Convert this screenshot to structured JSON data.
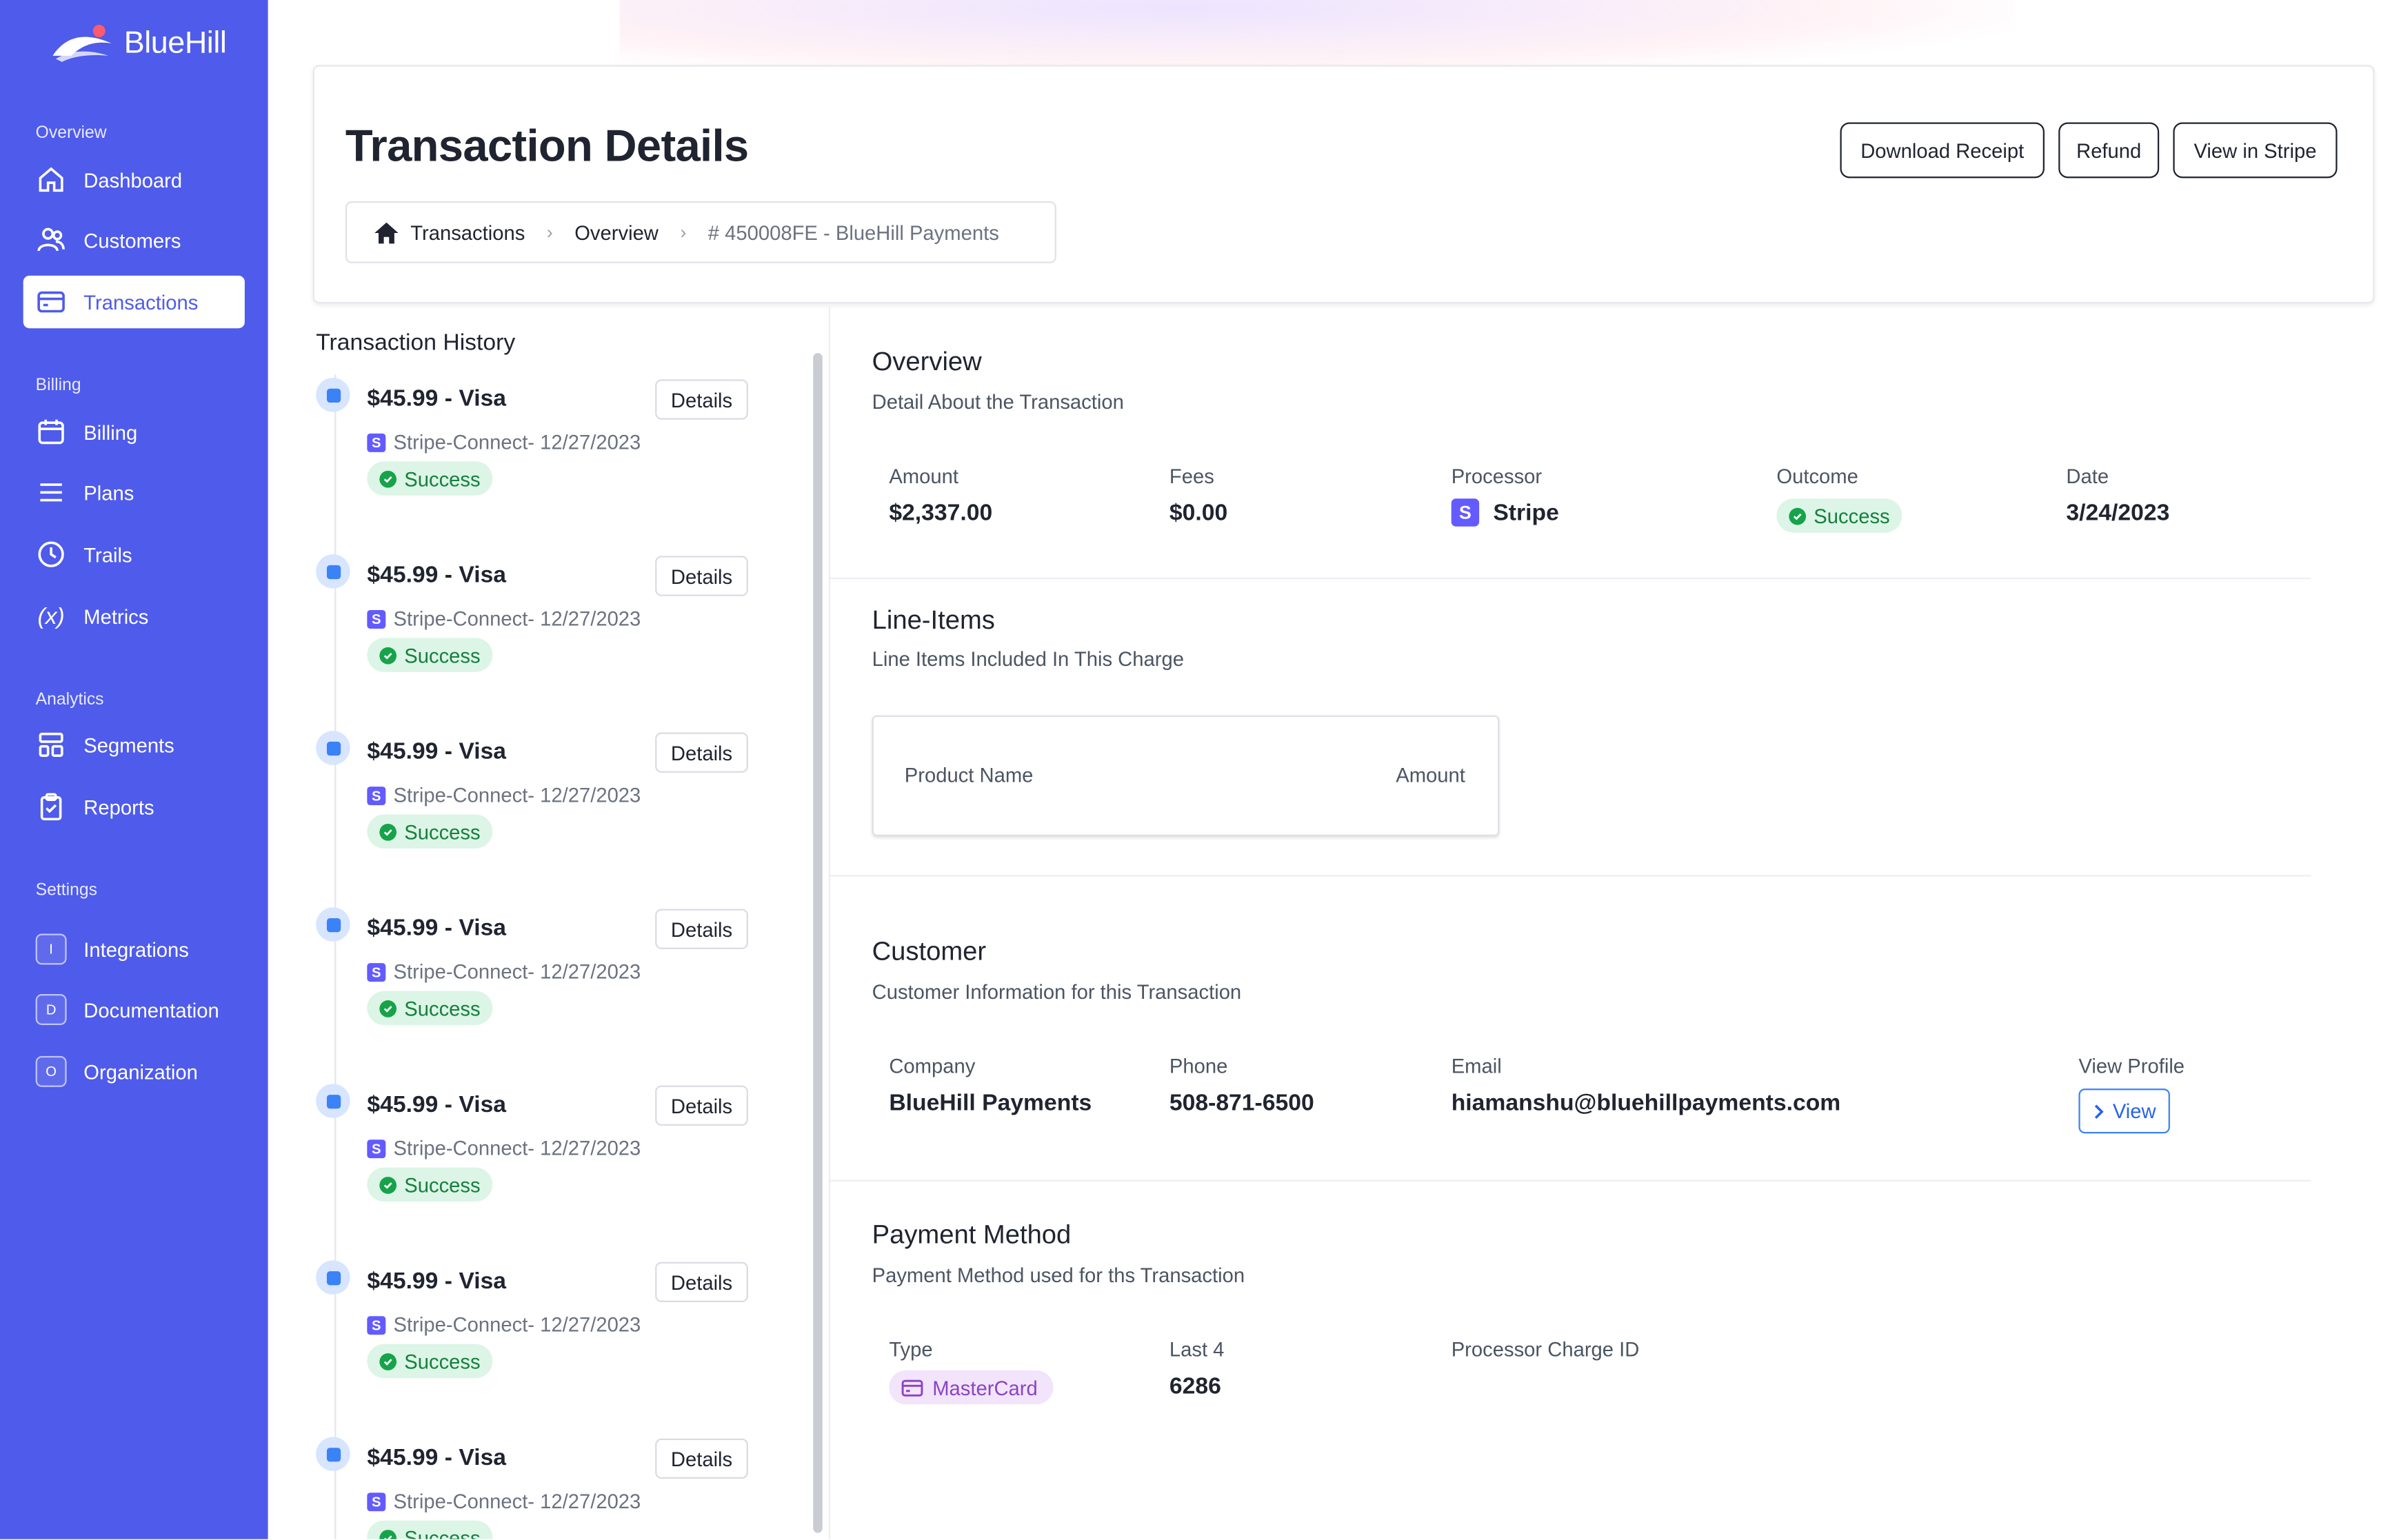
{
  "brand": {
    "name": "BlueHill"
  },
  "sidebar": {
    "sections": {
      "overview": "Overview",
      "billing": "Billing",
      "analytics": "Analytics",
      "settings": "Settings"
    },
    "items": {
      "dashboard": "Dashboard",
      "customers": "Customers",
      "transactions": "Transactions",
      "billing": "Billing",
      "plans": "Plans",
      "trails": "Trails",
      "metrics": "Metrics",
      "segments": "Segments",
      "reports": "Reports",
      "integrations": "Integrations",
      "documentation": "Documentation",
      "organization": "Organization"
    },
    "badges": {
      "integrations": "I",
      "documentation": "D",
      "organization": "O"
    },
    "active": "transactions"
  },
  "header": {
    "title": "Transaction Details",
    "breadcrumb": [
      "Transactions",
      "Overview",
      "# 450008FE - BlueHill Payments"
    ],
    "buttons": {
      "download": "Download Receipt",
      "refund": "Refund",
      "view_stripe": "View in Stripe"
    }
  },
  "history": {
    "title": "Transaction History",
    "details_label": "Details",
    "items": [
      {
        "amount": "$45.99 - Visa",
        "source": "Stripe-Connect- 12/27/2023",
        "status": "Success"
      },
      {
        "amount": "$45.99 - Visa",
        "source": "Stripe-Connect- 12/27/2023",
        "status": "Success"
      },
      {
        "amount": "$45.99 - Visa",
        "source": "Stripe-Connect- 12/27/2023",
        "status": "Success"
      },
      {
        "amount": "$45.99 - Visa",
        "source": "Stripe-Connect- 12/27/2023",
        "status": "Success"
      },
      {
        "amount": "$45.99 - Visa",
        "source": "Stripe-Connect- 12/27/2023",
        "status": "Success"
      },
      {
        "amount": "$45.99 - Visa",
        "source": "Stripe-Connect- 12/27/2023",
        "status": "Success"
      },
      {
        "amount": "$45.99 - Visa",
        "source": "Stripe-Connect- 12/27/2023",
        "status": "Success"
      }
    ]
  },
  "overview": {
    "title": "Overview",
    "subtitle": "Detail About the Transaction",
    "amount_label": "Amount",
    "amount": "$2,337.00",
    "fees_label": "Fees",
    "fees": "$0.00",
    "processor_label": "Processor",
    "processor": "Stripe",
    "outcome_label": "Outcome",
    "outcome": "Success",
    "date_label": "Date",
    "date": "3/24/2023"
  },
  "line_items": {
    "title": "Line-Items",
    "subtitle": "Line Items Included In This Charge",
    "col_product": "Product Name",
    "col_amount": "Amount"
  },
  "customer": {
    "title": "Customer",
    "subtitle": "Customer Information for this Transaction",
    "company_label": "Company",
    "company": "BlueHill Payments",
    "phone_label": "Phone",
    "phone": "508-871-6500",
    "email_label": "Email",
    "email": "hiamanshu@bluehillpayments.com",
    "profile_label": "View Profile",
    "view_button": "View"
  },
  "payment": {
    "title": "Payment Method",
    "subtitle": "Payment Method used for ths Transaction",
    "type_label": "Type",
    "type": "MasterCard",
    "last4_label": "Last 4",
    "last4": "6286",
    "charge_id_label": "Processor Charge ID"
  },
  "colors": {
    "sidebar": "#4f5bea",
    "success_bg": "#dcf5e6",
    "success_fg": "#15803d",
    "stripe": "#635bff",
    "link": "#2563eb",
    "card_pill_bg": "#f1e4fb",
    "card_pill_fg": "#8b43c4"
  },
  "icons": {
    "dashboard": "home-icon",
    "customers": "users-icon",
    "transactions": "card-icon",
    "billing": "calendar-icon",
    "plans": "list-icon",
    "trails": "clock-icon",
    "metrics": "variable-icon",
    "segments": "layout-icon",
    "reports": "clipboard-icon"
  }
}
